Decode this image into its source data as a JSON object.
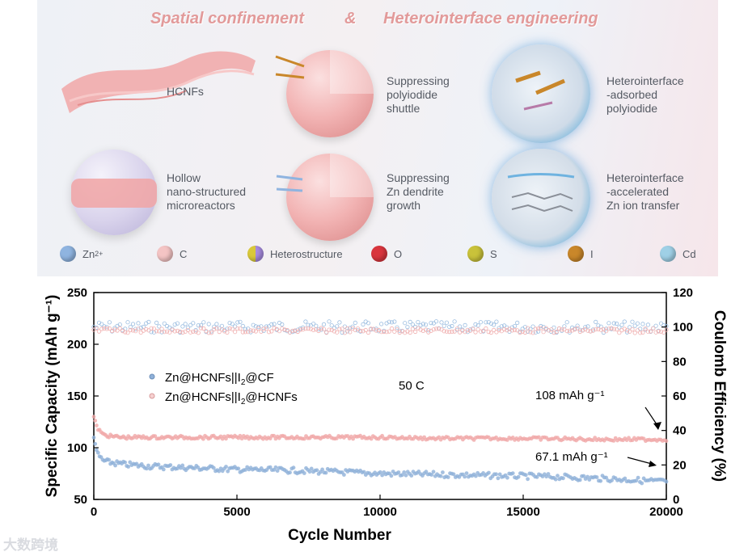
{
  "header": {
    "title_left": "Spatial confinement",
    "title_amp": "&",
    "title_right": "Heterointerface engineering"
  },
  "labels": {
    "hcnfs": "HCNFs",
    "hollow": "Hollow\nnano-structured\nmicroreactors",
    "suppress_shuttle": "Suppressing\npolyiodide\nshuttle",
    "suppress_dendrite": "Suppressing\nZn dendrite\ngrowth",
    "hetero_adsorbed": "Heterointerface\n-adsorbed\npolyiodide",
    "hetero_accelerated": "Heterointerface\n-accelerated\nZn ion transfer"
  },
  "legend": [
    {
      "label": "Zn",
      "sup": "2+",
      "color": "#8fb4e0"
    },
    {
      "label": "C",
      "sup": "",
      "color": "#f4c4c4"
    },
    {
      "label": "Heterostructure",
      "sup": "",
      "color": "#b79be0"
    },
    {
      "label": "O",
      "sup": "",
      "color": "#d9353d"
    },
    {
      "label": "S",
      "sup": "",
      "color": "#c9c23a"
    },
    {
      "label": "I",
      "sup": "",
      "color": "#c9872a"
    },
    {
      "label": "Cd",
      "sup": "",
      "color": "#9fd0e6"
    }
  ],
  "chart_data": {
    "type": "scatter",
    "xlabel": "Cycle Number",
    "ylabel": "Specific Capacity (mAh g⁻¹)",
    "y2label": "Coulomb Efficiency (%)",
    "xlim": [
      0,
      20000
    ],
    "ylim": [
      50,
      250
    ],
    "y2lim": [
      0,
      120
    ],
    "xticks": [
      "0",
      "5000",
      "10000",
      "15000",
      "20000"
    ],
    "yticks": [
      "50",
      "100",
      "150",
      "200",
      "250"
    ],
    "y2ticks": [
      "0",
      "20",
      "40",
      "60",
      "80",
      "100",
      "120"
    ],
    "rate_label": "50 C",
    "series": [
      {
        "name": "Zn@HCNFs||I₂@CF",
        "legend_main": "Zn@HCNFs||I",
        "legend_sub": "2",
        "legend_tail": "@CF",
        "color": "#8fb0d8",
        "capacity": [
          [
            0,
            112
          ],
          [
            100,
            95
          ],
          [
            300,
            88
          ],
          [
            500,
            86
          ],
          [
            1000,
            84
          ],
          [
            2000,
            82
          ],
          [
            3000,
            81
          ],
          [
            4000,
            80
          ],
          [
            5000,
            79
          ],
          [
            7000,
            78
          ],
          [
            9000,
            76
          ],
          [
            10000,
            75
          ],
          [
            12000,
            74
          ],
          [
            14000,
            73
          ],
          [
            16000,
            72
          ],
          [
            18000,
            70
          ],
          [
            20000,
            67.1
          ]
        ],
        "ce": 100,
        "end_annotation": "67.1 mAh g⁻¹"
      },
      {
        "name": "Zn@HCNFs||I₂@HCNFs",
        "legend_main": "Zn@HCNFs||I",
        "legend_sub": "2",
        "legend_tail": "@HCNFs",
        "color": "#f0a8a8",
        "capacity": [
          [
            0,
            130
          ],
          [
            100,
            120
          ],
          [
            300,
            113
          ],
          [
            600,
            111
          ],
          [
            1000,
            110
          ],
          [
            3000,
            110
          ],
          [
            5000,
            110
          ],
          [
            8000,
            110
          ],
          [
            10000,
            110
          ],
          [
            12000,
            109
          ],
          [
            15000,
            109
          ],
          [
            18000,
            108
          ],
          [
            20000,
            108
          ]
        ],
        "ce": 98,
        "end_annotation": "108 mAh g⁻¹"
      }
    ]
  },
  "watermark": "大数跨境"
}
